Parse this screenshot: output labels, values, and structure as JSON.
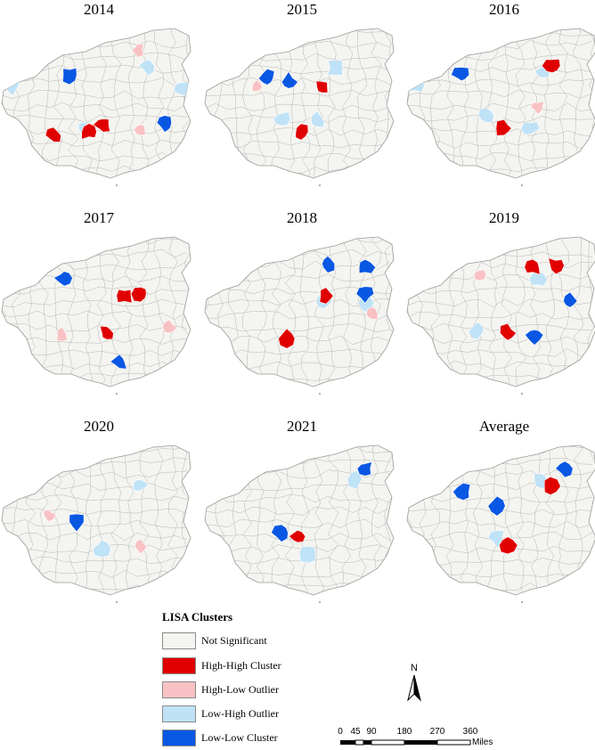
{
  "panels": [
    {
      "title": "2014",
      "hh": [
        [
          60,
          152
        ],
        [
          100,
          148
        ],
        [
          116,
          140
        ]
      ],
      "hl": [
        [
          155,
          56
        ],
        [
          158,
          146
        ]
      ],
      "lh": [
        [
          14,
          96
        ],
        [
          204,
          100
        ],
        [
          166,
          74
        ],
        [
          96,
          146
        ]
      ],
      "ll": [
        [
          78,
          84
        ],
        [
          185,
          138
        ]
      ]
    },
    {
      "title": "2015",
      "hh": [
        [
          362,
          98
        ],
        [
          338,
          148
        ]
      ],
      "hl": [
        [
          288,
          98
        ]
      ],
      "lh": [
        [
          376,
          76
        ],
        [
          316,
          134
        ],
        [
          356,
          136
        ]
      ],
      "ll": [
        [
          300,
          88
        ],
        [
          324,
          92
        ]
      ]
    },
    {
      "title": "2016",
      "hh": [
        [
          620,
          74
        ],
        [
          566,
          144
        ]
      ],
      "hl": [
        [
          604,
          120
        ]
      ],
      "lh": [
        [
          466,
          96
        ],
        [
          610,
          80
        ],
        [
          546,
          130
        ],
        [
          596,
          144
        ]
      ],
      "ll": [
        [
          518,
          84
        ]
      ]
    },
    {
      "title": "2017",
      "hh": [
        [
          120,
          374
        ],
        [
          140,
          332
        ],
        [
          158,
          330
        ]
      ],
      "hl": [
        [
          70,
          376
        ],
        [
          190,
          368
        ]
      ],
      "lh": [],
      "ll": [
        [
          72,
          312
        ],
        [
          134,
          406
        ]
      ]
    },
    {
      "title": "2018",
      "hh": [
        [
          322,
          380
        ],
        [
          366,
          332
        ]
      ],
      "hl": [
        [
          418,
          352
        ]
      ],
      "lh": [
        [
          234,
          316
        ],
        [
          364,
          338
        ],
        [
          410,
          340
        ]
      ],
      "ll": [
        [
          368,
          296
        ],
        [
          410,
          300
        ],
        [
          410,
          330
        ]
      ]
    },
    {
      "title": "2019",
      "hh": [
        [
          598,
          300
        ],
        [
          624,
          298
        ],
        [
          570,
          374
        ]
      ],
      "hl": [
        [
          538,
          308
        ]
      ],
      "lh": [
        [
          478,
          316
        ],
        [
          536,
          372
        ],
        [
          604,
          314
        ]
      ],
      "ll": [
        [
          640,
          338
        ],
        [
          600,
          376
        ]
      ]
    },
    {
      "title": "2020",
      "hh": [],
      "hl": [
        [
          20,
          554
        ],
        [
          54,
          578
        ],
        [
          158,
          614
        ]
      ],
      "lh": [
        [
          156,
          544
        ],
        [
          114,
          616
        ]
      ],
      "ll": [
        [
          86,
          586
        ]
      ]
    },
    {
      "title": "2021",
      "hh": [
        [
          334,
          602
        ]
      ],
      "hl": [],
      "lh": [
        [
          400,
          538
        ],
        [
          346,
          622
        ]
      ],
      "ll": [
        [
          410,
          526
        ],
        [
          316,
          598
        ]
      ]
    },
    {
      "title": "Average",
      "hh": [
        [
          570,
          612
        ],
        [
          618,
          546
        ]
      ],
      "hl": [],
      "lh": [
        [
          608,
          540
        ],
        [
          558,
          604
        ]
      ],
      "ll": [
        [
          520,
          552
        ],
        [
          558,
          568
        ],
        [
          634,
          526
        ]
      ]
    }
  ],
  "legend": {
    "title": "LISA Clusters",
    "items": [
      {
        "label": "Not Significant",
        "color": "#f4f4f0"
      },
      {
        "label": "High-High Cluster",
        "color": "#e00000"
      },
      {
        "label": "High-Low Outlier",
        "color": "#f9c1c3"
      },
      {
        "label": "Low-High Outlier",
        "color": "#bfe2f6"
      },
      {
        "label": "Low-Low Cluster",
        "color": "#0a57e3"
      }
    ]
  },
  "north_arrow": {
    "label": "N"
  },
  "scale_bar": {
    "ticks": [
      "0",
      "45",
      "90",
      "180",
      "270",
      "360"
    ],
    "unit": "Miles"
  },
  "colors": {
    "base": "#f4f4f0",
    "border": "#b6b6b6",
    "hh": "#e00000",
    "hl": "#f9c1c3",
    "lh": "#bfe2f6",
    "ll": "#0a57e3"
  }
}
